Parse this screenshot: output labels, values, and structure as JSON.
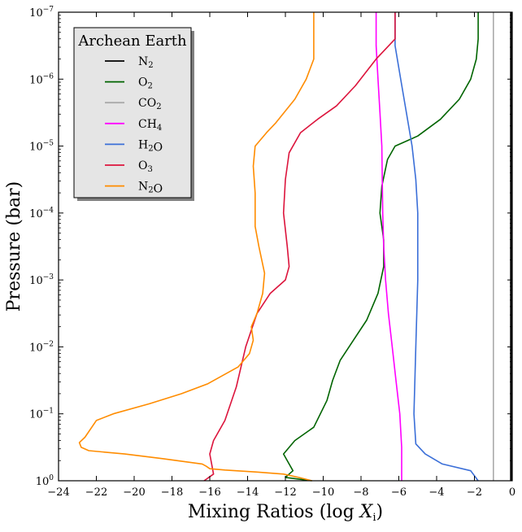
{
  "chart_data": {
    "type": "line",
    "xlabel": "Mixing Ratios (log X_i)",
    "ylabel": "Pressure (bar)",
    "xlim": [
      -24,
      0
    ],
    "ylim_log10": [
      0,
      -7
    ],
    "y_scale": "log",
    "y_inverted": true,
    "grid": false,
    "x_ticks": [
      "−24",
      "−22",
      "−20",
      "−18",
      "−16",
      "−14",
      "−12",
      "−10",
      "−8",
      "−6",
      "−4",
      "−2",
      "0"
    ],
    "y_ticks": [
      "10^0",
      "10^-1",
      "10^-2",
      "10^-3",
      "10^-4",
      "10^-5",
      "10^-6",
      "10^-7"
    ],
    "legend": {
      "title": "Archean Earth",
      "position": "upper-left"
    },
    "series": [
      {
        "name": "N2",
        "color": "#000000",
        "points": [
          [
            -0.05,
            0
          ],
          [
            -0.05,
            -7
          ]
        ]
      },
      {
        "name": "O2",
        "color": "#006400",
        "points": [
          [
            -10.6,
            0
          ],
          [
            -12,
            -0.05
          ],
          [
            -11.6,
            -0.15
          ],
          [
            -11.8,
            -0.25
          ],
          [
            -12.1,
            -0.4
          ],
          [
            -11.5,
            -0.6
          ],
          [
            -10.5,
            -0.8
          ],
          [
            -9.8,
            -1.2
          ],
          [
            -9.5,
            -1.5
          ],
          [
            -9.1,
            -1.8
          ],
          [
            -8.4,
            -2.1
          ],
          [
            -7.7,
            -2.4
          ],
          [
            -7.1,
            -2.8
          ],
          [
            -6.8,
            -3.2
          ],
          [
            -6.8,
            -3.6
          ],
          [
            -7.0,
            -4.0
          ],
          [
            -6.9,
            -4.4
          ],
          [
            -6.6,
            -4.8
          ],
          [
            -6.2,
            -5.0
          ],
          [
            -5.0,
            -5.15
          ],
          [
            -3.8,
            -5.4
          ],
          [
            -2.8,
            -5.7
          ],
          [
            -2.2,
            -6.0
          ],
          [
            -1.9,
            -6.3
          ],
          [
            -1.8,
            -6.6
          ],
          [
            -1.8,
            -7
          ]
        ]
      },
      {
        "name": "CO2",
        "color": "#aaaaaa",
        "points": [
          [
            -1.0,
            0
          ],
          [
            -1.0,
            -7
          ]
        ]
      },
      {
        "name": "CH4",
        "color": "#ff00ff",
        "points": [
          [
            -5.85,
            0
          ],
          [
            -5.85,
            -0.5
          ],
          [
            -5.95,
            -1.0
          ],
          [
            -6.15,
            -1.5
          ],
          [
            -6.35,
            -2.0
          ],
          [
            -6.55,
            -2.5
          ],
          [
            -6.7,
            -3.0
          ],
          [
            -6.8,
            -3.5
          ],
          [
            -6.85,
            -4.0
          ],
          [
            -6.9,
            -5.0
          ],
          [
            -7.0,
            -5.5
          ],
          [
            -7.1,
            -6.0
          ],
          [
            -7.2,
            -6.5
          ],
          [
            -7.2,
            -7
          ]
        ]
      },
      {
        "name": "H2O",
        "color": "#3b6fd8",
        "points": [
          [
            -1.8,
            0
          ],
          [
            -2.2,
            -0.15
          ],
          [
            -3.7,
            -0.25
          ],
          [
            -4.6,
            -0.4
          ],
          [
            -5.1,
            -0.55
          ],
          [
            -5.2,
            -1.0
          ],
          [
            -5.1,
            -2.0
          ],
          [
            -5.0,
            -3.0
          ],
          [
            -5.0,
            -4.0
          ],
          [
            -5.1,
            -4.5
          ],
          [
            -5.3,
            -5.0
          ],
          [
            -5.6,
            -5.5
          ],
          [
            -5.9,
            -6.0
          ],
          [
            -6.2,
            -6.5
          ],
          [
            -6.2,
            -7
          ]
        ]
      },
      {
        "name": "O3",
        "color": "#dc143c",
        "points": [
          [
            -16.3,
            0
          ],
          [
            -15.8,
            -0.1
          ],
          [
            -15.9,
            -0.25
          ],
          [
            -16.0,
            -0.4
          ],
          [
            -15.8,
            -0.6
          ],
          [
            -15.2,
            -0.9
          ],
          [
            -14.6,
            -1.4
          ],
          [
            -14.1,
            -2.0
          ],
          [
            -13.5,
            -2.5
          ],
          [
            -12.8,
            -2.8
          ],
          [
            -12.0,
            -3.0
          ],
          [
            -11.8,
            -3.2
          ],
          [
            -11.9,
            -3.5
          ],
          [
            -12.1,
            -4.0
          ],
          [
            -12.0,
            -4.5
          ],
          [
            -11.8,
            -4.9
          ],
          [
            -11.2,
            -5.2
          ],
          [
            -10.3,
            -5.4
          ],
          [
            -9.3,
            -5.6
          ],
          [
            -8.3,
            -5.9
          ],
          [
            -7.2,
            -6.3
          ],
          [
            -6.2,
            -6.6
          ],
          [
            -6.2,
            -7
          ]
        ]
      },
      {
        "name": "N2O",
        "color": "#ff8c00",
        "points": [
          [
            -10.6,
            0
          ],
          [
            -11.3,
            -0.05
          ],
          [
            -12.1,
            -0.1
          ],
          [
            -13.5,
            -0.13
          ],
          [
            -15.2,
            -0.16
          ],
          [
            -16.0,
            -0.18
          ],
          [
            -16.2,
            -0.22
          ],
          [
            -16.4,
            -0.25
          ],
          [
            -18.5,
            -0.33
          ],
          [
            -20.5,
            -0.4
          ],
          [
            -22.4,
            -0.45
          ],
          [
            -22.8,
            -0.5
          ],
          [
            -22.9,
            -0.57
          ],
          [
            -22.6,
            -0.65
          ],
          [
            -22.0,
            -0.9
          ],
          [
            -21.1,
            -1.0
          ],
          [
            -19.2,
            -1.15
          ],
          [
            -17.5,
            -1.3
          ],
          [
            -16.1,
            -1.45
          ],
          [
            -14.5,
            -1.7
          ],
          [
            -13.9,
            -1.9
          ],
          [
            -13.7,
            -2.1
          ],
          [
            -13.8,
            -2.3
          ],
          [
            -13.5,
            -2.5
          ],
          [
            -13.2,
            -2.8
          ],
          [
            -13.1,
            -3.1
          ],
          [
            -13.4,
            -3.5
          ],
          [
            -13.6,
            -3.8
          ],
          [
            -13.6,
            -4.3
          ],
          [
            -13.7,
            -4.7
          ],
          [
            -13.6,
            -5.0
          ],
          [
            -13.0,
            -5.2
          ],
          [
            -12.5,
            -5.35
          ],
          [
            -11.5,
            -5.7
          ],
          [
            -10.9,
            -6.0
          ],
          [
            -10.5,
            -6.3
          ],
          [
            -10.5,
            -7
          ]
        ]
      }
    ]
  }
}
